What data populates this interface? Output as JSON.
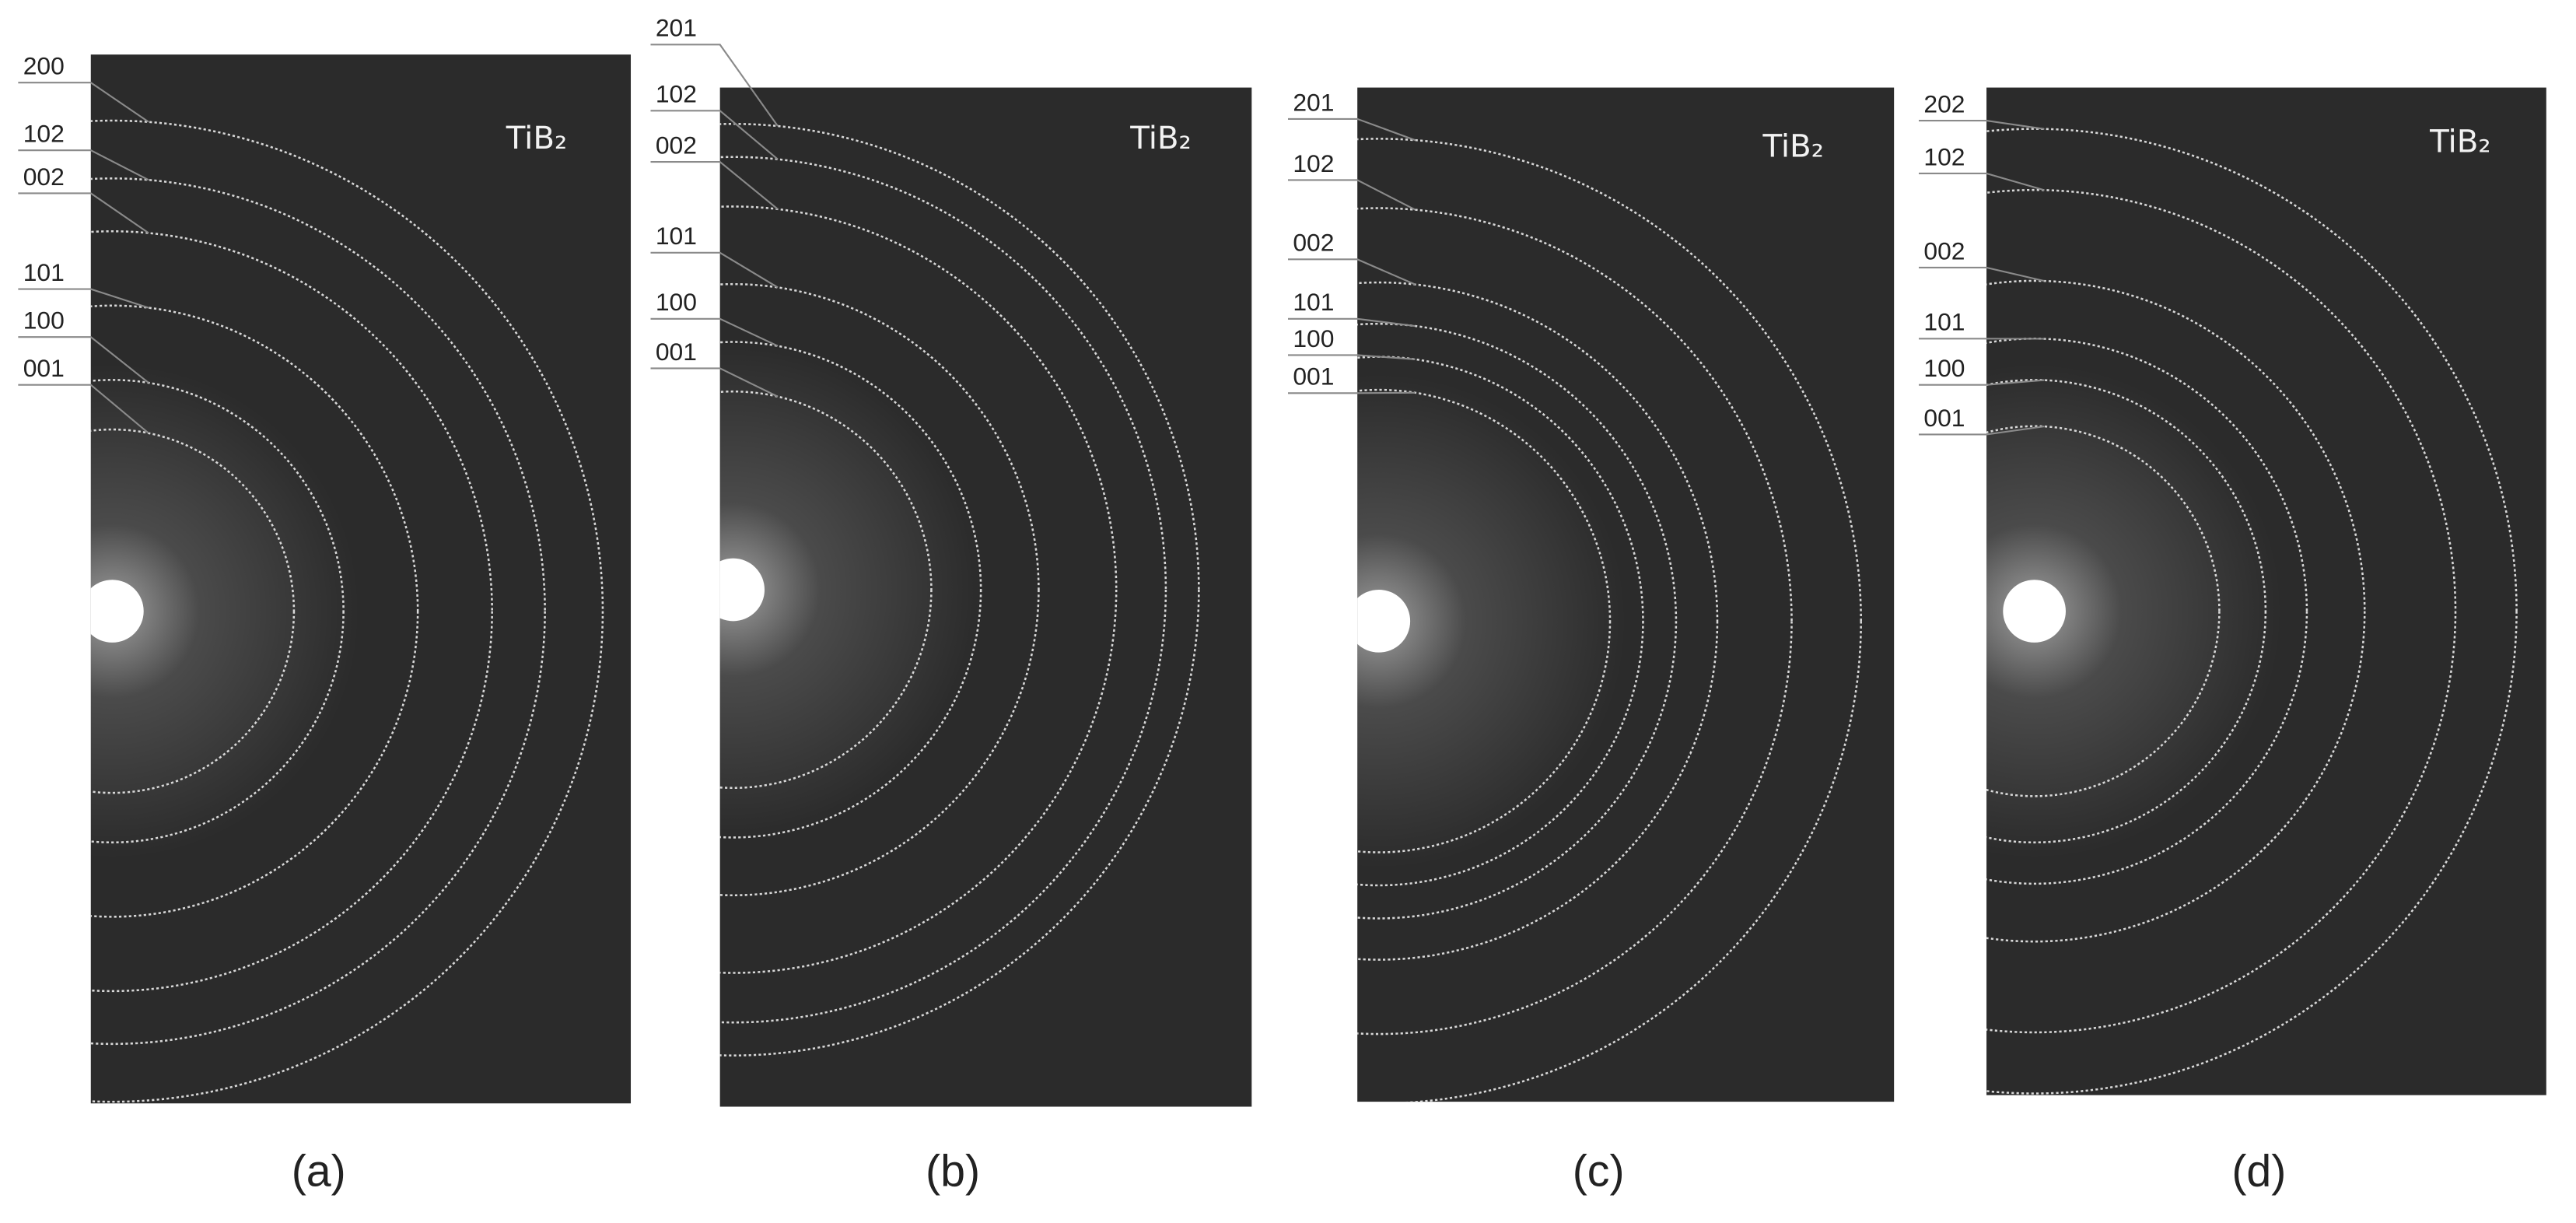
{
  "panels": [
    {
      "caption": "(a)",
      "material": "TiB₂",
      "labels": [
        "200",
        "102",
        "002",
        "101",
        "100",
        "001"
      ]
    },
    {
      "caption": "(b)",
      "material": "TiB₂",
      "labels": [
        "201",
        "102",
        "002",
        "101",
        "100",
        "001"
      ]
    },
    {
      "caption": "(c)",
      "material": "TiB₂",
      "labels": [
        "201",
        "102",
        "002",
        "101",
        "100",
        "001"
      ]
    },
    {
      "caption": "(d)",
      "material": "TiB₂",
      "labels": [
        "202",
        "102",
        "002",
        "101",
        "100",
        "001"
      ]
    }
  ]
}
